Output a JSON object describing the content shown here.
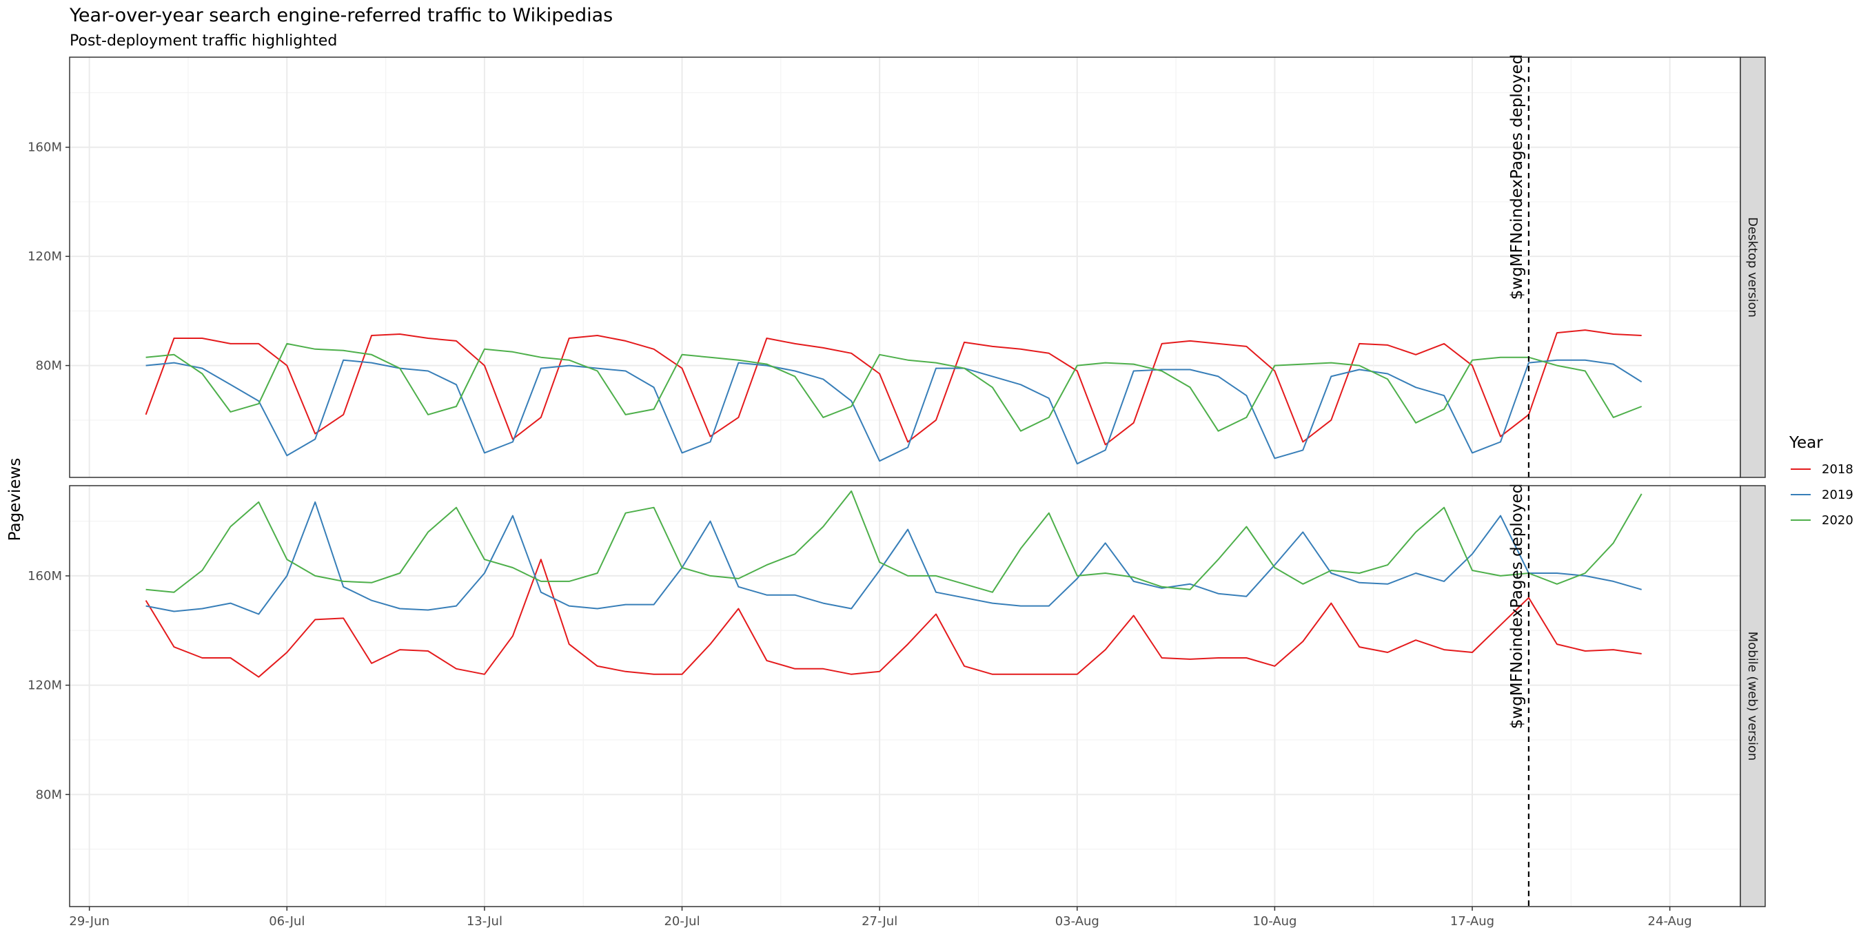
{
  "chart_data": {
    "type": "line",
    "title": "Year-over-year search engine-referred traffic to Wikipedias",
    "subtitle": "Post-deployment traffic highlighted",
    "ylabel": "Pageviews",
    "xlabel": "",
    "x_ticks": [
      "29-Jun",
      "06-Jul",
      "13-Jul",
      "20-Jul",
      "27-Jul",
      "03-Aug",
      "10-Aug",
      "17-Aug",
      "24-Aug"
    ],
    "x_range_days": [
      -0.7,
      58.5
    ],
    "x_start_day": 2,
    "deployment_day": 51,
    "annotation": "$wgMFNoindexPages deployed",
    "grid": true,
    "legend": {
      "title": "Year",
      "position": "right",
      "entries": [
        {
          "label": "2018",
          "color": "#E41A1C"
        },
        {
          "label": "2019",
          "color": "#377EB8"
        },
        {
          "label": "2020",
          "color": "#4DAF4A"
        }
      ]
    },
    "panels": [
      {
        "label": "Desktop version",
        "ylim": [
          39000000,
          193000000
        ],
        "y_ticks": [
          80000000,
          120000000,
          160000000
        ],
        "y_tick_labels": [
          "80M",
          "120M",
          "160M"
        ],
        "series": [
          {
            "name": "2018",
            "color": "#E41A1C",
            "values": [
              62,
              90,
              90,
              88,
              88,
              80,
              55,
              62,
              91,
              91.5,
              90,
              89,
              80,
              53,
              61,
              90,
              91,
              89,
              86,
              79,
              54,
              61,
              90,
              88,
              86.5,
              84.5,
              77,
              52,
              60,
              88.5,
              87,
              86,
              84.5,
              78,
              51,
              59,
              88,
              89,
              88,
              87,
              78,
              52,
              60,
              88,
              87.5,
              84,
              88,
              80,
              54,
              62,
              92,
              93,
              91.5,
              91
            ]
          },
          {
            "name": "2019",
            "color": "#377EB8",
            "values": [
              80,
              81,
              79,
              73,
              67,
              47,
              53,
              82,
              81,
              79,
              78,
              73,
              48,
              52,
              79,
              80,
              79,
              78,
              72,
              48,
              52,
              81,
              80,
              78,
              75,
              67,
              45,
              50,
              79,
              79,
              76,
              73,
              68,
              44,
              49,
              78,
              78.5,
              78.5,
              76,
              69,
              46,
              49,
              76,
              78.5,
              77,
              72,
              69,
              48,
              52,
              81,
              82,
              82,
              80.5,
              74
            ]
          },
          {
            "name": "2020",
            "color": "#4DAF4A",
            "values": [
              83,
              84,
              77,
              63,
              66,
              88,
              86,
              85.5,
              84,
              79,
              62,
              65,
              86,
              85,
              83,
              82,
              78,
              62,
              64,
              84,
              83,
              82,
              80.5,
              76,
              61,
              65,
              84,
              82,
              81,
              79,
              72,
              56,
              61,
              80,
              81,
              80.5,
              78,
              72,
              56,
              61,
              80,
              80.5,
              81,
              80,
              75,
              59,
              64,
              82,
              83,
              83,
              80,
              78,
              61,
              65
            ]
          }
        ]
      },
      {
        "label": "Mobile (web) version",
        "ylim": [
          39000000,
          193000000
        ],
        "y_ticks": [
          80000000,
          120000000,
          160000000
        ],
        "y_tick_labels": [
          "80M",
          "120M",
          "160M"
        ],
        "series": [
          {
            "name": "2018",
            "color": "#E41A1C",
            "values": [
              151,
              134,
              130,
              130,
              123,
              132,
              144,
              144.5,
              128,
              133,
              132.5,
              126,
              124,
              138,
              166,
              135,
              127,
              125,
              124,
              124,
              135,
              148,
              129,
              126,
              126,
              124,
              125,
              135,
              146,
              127,
              124,
              124,
              124,
              124,
              133,
              145.5,
              130,
              129.5,
              130,
              130,
              127,
              136,
              150,
              134,
              132,
              136.5,
              133,
              132,
              142,
              152,
              135,
              132.5,
              133,
              131.5
            ]
          },
          {
            "name": "2019",
            "color": "#377EB8",
            "values": [
              149,
              147,
              148,
              150,
              146,
              160,
              187,
              156,
              151,
              148,
              147.5,
              149,
              161,
              182,
              154,
              149,
              148,
              149.5,
              149.5,
              163,
              180,
              156,
              153,
              153,
              150,
              148,
              162,
              177,
              154,
              152,
              150,
              149,
              149,
              159,
              172,
              158,
              155.5,
              157,
              153.5,
              152.5,
              164,
              176,
              161,
              157.5,
              157,
              161,
              158,
              168,
              182,
              161,
              161,
              160,
              158,
              155
            ]
          },
          {
            "name": "2020",
            "color": "#4DAF4A",
            "values": [
              155,
              154,
              162,
              178,
              187,
              166,
              160,
              158,
              157.5,
              161,
              176,
              185,
              166,
              163,
              158,
              158,
              161,
              183,
              185,
              163,
              160,
              159,
              164,
              168,
              178,
              191,
              165,
              160,
              160,
              157,
              154,
              170,
              183,
              160,
              161,
              159.5,
              156,
              155,
              166,
              178,
              163,
              157,
              162,
              161,
              164,
              176,
              185,
              162,
              160,
              161,
              157,
              161,
              172,
              190
            ]
          }
        ]
      }
    ]
  }
}
